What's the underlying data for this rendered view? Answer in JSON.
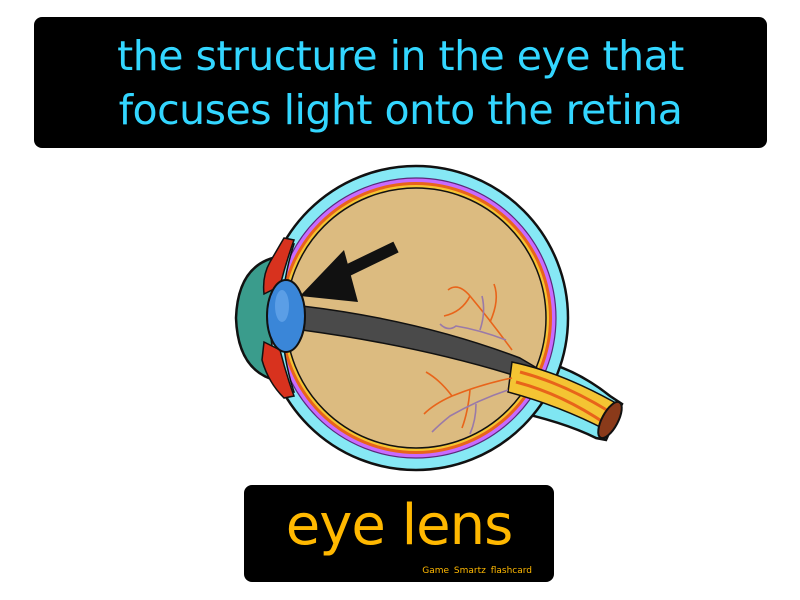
{
  "definition": {
    "line1": "the structure in the eye that",
    "line2": "focuses light onto the retina"
  },
  "term": "eye lens",
  "credit": "Game Smartz flashcard",
  "colors": {
    "definition_text": "#33d6ff",
    "term_text": "#ffb800",
    "box_background": "#000000"
  },
  "illustration": {
    "icon": "eyeball-cross-section-icon",
    "pointer": "arrow-icon"
  }
}
